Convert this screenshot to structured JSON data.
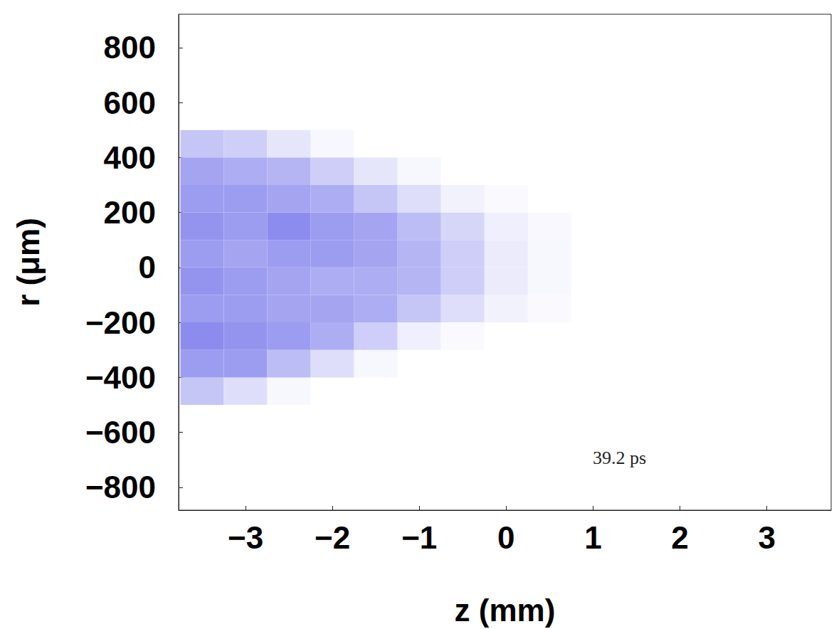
{
  "chart_data": {
    "type": "heatmap",
    "x_label": "z (mm)",
    "y_label": "r (μm)",
    "xlim": [
      -3.77,
      3.74
    ],
    "xticks": [
      {
        "value": -3,
        "label": "−3"
      },
      {
        "value": -2,
        "label": "−2"
      },
      {
        "value": -1,
        "label": "−1"
      },
      0,
      1,
      2,
      3
    ],
    "ylim": [
      -883,
      921
    ],
    "yticks": [
      {
        "value": -800,
        "label": "−800"
      },
      {
        "value": -600,
        "label": "−600"
      },
      {
        "value": -400,
        "label": "−400"
      },
      {
        "value": -200,
        "label": "−200"
      },
      0,
      200,
      400,
      600,
      800
    ],
    "z": [
      -3.5,
      -3.0,
      -2.5,
      -2.0,
      -1.5,
      -1.0,
      -0.5,
      0,
      0.5
    ],
    "r": [
      -450,
      -350,
      -250,
      -150,
      -50,
      50,
      150,
      250,
      350,
      450
    ],
    "intensity": [
      [
        0.35,
        0.6,
        0.7,
        0.6,
        0.65,
        0.6,
        0.65,
        0.6,
        0.55,
        0.35
      ],
      [
        0.2,
        0.6,
        0.65,
        0.6,
        0.6,
        0.55,
        0.6,
        0.6,
        0.5,
        0.3
      ],
      [
        0.05,
        0.4,
        0.6,
        0.55,
        0.55,
        0.6,
        0.7,
        0.55,
        0.45,
        0.15
      ],
      [
        0,
        0.2,
        0.5,
        0.55,
        0.5,
        0.6,
        0.6,
        0.5,
        0.3,
        0.05
      ],
      [
        0,
        0.05,
        0.3,
        0.5,
        0.5,
        0.55,
        0.55,
        0.35,
        0.15,
        0
      ],
      [
        0,
        0,
        0.1,
        0.35,
        0.45,
        0.45,
        0.4,
        0.2,
        0.05,
        0
      ],
      [
        0,
        0,
        0.03,
        0.2,
        0.3,
        0.3,
        0.25,
        0.08,
        0,
        0
      ],
      [
        0,
        0,
        0,
        0.08,
        0.12,
        0.12,
        0.1,
        0.03,
        0,
        0
      ],
      [
        0,
        0,
        0,
        0.03,
        0.05,
        0.05,
        0.04,
        0,
        0,
        0
      ]
    ],
    "color_range": [
      0,
      1
    ],
    "color": "#5a5ae6",
    "annotations": [
      "39.2 ps"
    ]
  }
}
